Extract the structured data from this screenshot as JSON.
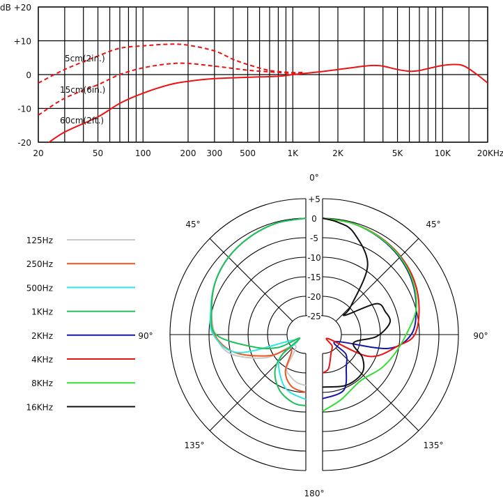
{
  "chart_data": [
    {
      "type": "line",
      "ylabel": "dB",
      "xlabel_unit": "KHz",
      "x_scale": "log",
      "xlim": [
        20,
        20000
      ],
      "ylim": [
        -20,
        20
      ],
      "grid": true,
      "x_tick_labels": [
        {
          "f": 20,
          "label": "20"
        },
        {
          "f": 50,
          "label": "50"
        },
        {
          "f": 100,
          "label": "100"
        },
        {
          "f": 200,
          "label": "200"
        },
        {
          "f": 300,
          "label": "300"
        },
        {
          "f": 500,
          "label": "500"
        },
        {
          "f": 1000,
          "label": "1K"
        },
        {
          "f": 2000,
          "label": "2K"
        },
        {
          "f": 5000,
          "label": "5K"
        },
        {
          "f": 10000,
          "label": "10K"
        },
        {
          "f": 20000,
          "label": "20KHz"
        }
      ],
      "x_gridlines": [
        20,
        30,
        40,
        50,
        60,
        70,
        80,
        90,
        100,
        200,
        300,
        400,
        500,
        600,
        700,
        800,
        900,
        1000,
        1500,
        2000,
        3000,
        4000,
        5000,
        6000,
        7000,
        8000,
        9000,
        10000,
        15000,
        20000
      ],
      "y_tick_labels": [
        {
          "v": 20,
          "label": "+20"
        },
        {
          "v": 10,
          "label": "+10"
        },
        {
          "v": 0,
          "label": "0"
        },
        {
          "v": -10,
          "label": "-10"
        },
        {
          "v": -20,
          "label": "-20"
        }
      ],
      "color": "#ee1111",
      "series": [
        {
          "name": "5cm(2in.)",
          "dash": true,
          "x": [
            20,
            30,
            50,
            70,
            100,
            150,
            200,
            300,
            400,
            500,
            700,
            1000,
            1200
          ],
          "y": [
            -2.5,
            1.5,
            5.5,
            7.8,
            8.5,
            9,
            8.7,
            7,
            4.5,
            3,
            1.2,
            0.6,
            0.7
          ]
        },
        {
          "name": "15cm(6in.)",
          "dash": true,
          "x": [
            20,
            30,
            50,
            70,
            100,
            150,
            200,
            300,
            500,
            700,
            1000,
            1200
          ],
          "y": [
            -12,
            -7,
            -3,
            0,
            2,
            3.2,
            3.3,
            2.5,
            1.3,
            0.8,
            0.4,
            0.6
          ]
        },
        {
          "name": "60cm(2ft.)",
          "dash": false,
          "x": [
            22,
            30,
            50,
            70,
            100,
            150,
            200,
            300,
            500,
            800,
            1000,
            1500,
            2000,
            3000,
            3500,
            4000,
            5000,
            6000,
            7000,
            8000,
            10000,
            12000,
            14000,
            17000,
            20000
          ],
          "y": [
            -21,
            -17,
            -12.5,
            -8.5,
            -5.5,
            -3,
            -2,
            -1.2,
            -0.8,
            -0.5,
            0,
            0.8,
            1.5,
            2.5,
            2.7,
            2.5,
            1.5,
            1,
            1.2,
            1.8,
            2.7,
            3,
            2.5,
            0,
            -2.5
          ]
        }
      ]
    },
    {
      "type": "polar",
      "rlim": [
        -25,
        5
      ],
      "r_tick_labels": [
        "+5",
        "0",
        "-5",
        "-10",
        "-15",
        "-20",
        "-25"
      ],
      "r_ticks": [
        5,
        0,
        -5,
        -10,
        -15,
        -20,
        -25
      ],
      "angle_labels": {
        "top": "0°",
        "upper_left": "45°",
        "upper_right": "45°",
        "left": "90°",
        "right": "90°",
        "lower_left": "135°",
        "lower_right": "135°",
        "bottom": "180°"
      },
      "series": [
        {
          "name": "125Hz",
          "color": "#c8c8c8",
          "side": "left",
          "angle": [
            0,
            15,
            30,
            45,
            60,
            75,
            90,
            104,
            120,
            135,
            150,
            160,
            170,
            180
          ],
          "db": [
            0,
            -0.3,
            -1,
            -1.8,
            -3,
            -4.8,
            -6.6,
            -9.8,
            -18,
            -26,
            -20,
            -18.4,
            -17.3,
            -16.8
          ]
        },
        {
          "name": "250Hz",
          "color": "#f0541c",
          "side": "left",
          "angle": [
            0,
            15,
            30,
            45,
            60,
            75,
            90,
            104,
            120,
            134,
            151,
            165,
            180
          ],
          "db": [
            0,
            -0.3,
            -1,
            -1.8,
            -3,
            -4.8,
            -6.4,
            -11,
            -19,
            -24.6,
            -19,
            -16,
            -15
          ]
        },
        {
          "name": "500Hz",
          "color": "#2fe6e0",
          "side": "left",
          "angle": [
            0,
            15,
            30,
            45,
            60,
            75,
            90,
            105,
            118,
            130,
            140,
            160,
            180
          ],
          "db": [
            0,
            -0.3,
            -1,
            -1.8,
            -3,
            -4.6,
            -6.1,
            -12,
            -27,
            -22,
            -19,
            -15,
            -13.2
          ]
        },
        {
          "name": "1KHz",
          "color": "#1fbf5a",
          "side": "left",
          "angle": [
            0,
            15,
            30,
            45,
            60,
            75,
            90,
            103,
            115,
            120,
            130,
            140,
            155,
            170,
            180
          ],
          "db": [
            0,
            -0.3,
            -1,
            -1.8,
            -3,
            -4.8,
            -6.8,
            -15.9,
            -22,
            -28,
            -22,
            -17.5,
            -14,
            -12,
            -11.6
          ]
        },
        {
          "name": "2KHz",
          "color": "#1616a6",
          "side": "right",
          "angle": [
            0,
            15,
            30,
            45,
            60,
            75,
            90,
            102,
            118,
            130,
            144,
            159,
            180
          ],
          "db": [
            0,
            -0.3,
            -1,
            -1.9,
            -3.2,
            -5,
            -7.1,
            -12.7,
            -26,
            -22,
            -19.5,
            -14.6,
            -13.4
          ]
        },
        {
          "name": "4KHz",
          "color": "#ee1111",
          "side": "right",
          "angle": [
            0,
            15,
            30,
            45,
            60,
            75,
            90,
            98,
            115,
            125,
            140,
            156,
            170,
            180
          ],
          "db": [
            0,
            -0.3,
            -0.8,
            -1.5,
            -2.6,
            -4.2,
            -6.2,
            -10,
            -16.6,
            -28,
            -26,
            -24.5,
            -21,
            -20
          ]
        },
        {
          "name": "8KHz",
          "color": "#33dd33",
          "side": "right",
          "angle": [
            0,
            15,
            30,
            45,
            60,
            75,
            90,
            105,
            120,
            141,
            164,
            180
          ],
          "db": [
            0,
            -0.3,
            -0.9,
            -1.7,
            -3,
            -5,
            -8.4,
            -10.7,
            -12.5,
            -14.5,
            -12.5,
            -10.2
          ]
        },
        {
          "name": "16KHz",
          "color": "#111111",
          "side": "right",
          "angle": [
            0,
            8,
            17,
            33,
            45,
            49,
            60,
            70,
            80,
            92,
            105,
            120,
            134,
            155,
            180
          ],
          "db": [
            0,
            -0.8,
            -2.5,
            -8.6,
            -19.6,
            -22.3,
            -14,
            -12.7,
            -12.3,
            -16,
            -21.6,
            -18,
            -15.7,
            -15.5,
            -16.4
          ]
        }
      ]
    }
  ]
}
